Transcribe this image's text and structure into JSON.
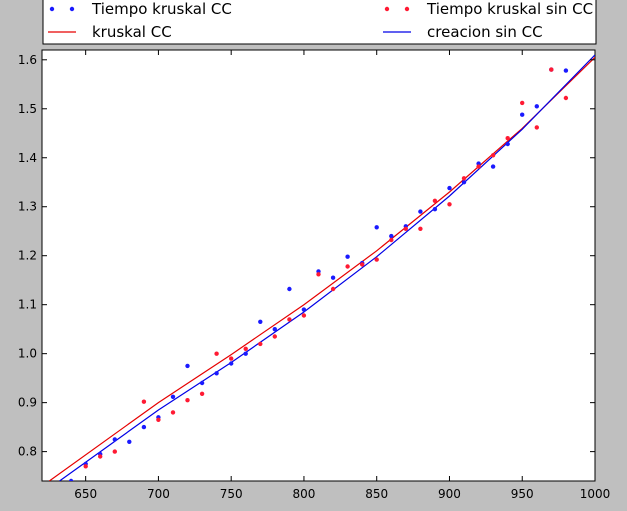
{
  "chart_data": {
    "type": "scatter",
    "title": "",
    "xlabel": "",
    "ylabel": "",
    "xlim": [
      620,
      1000
    ],
    "ylim": [
      0.74,
      1.62
    ],
    "x_ticks": [
      650,
      700,
      750,
      800,
      850,
      900,
      950,
      1000
    ],
    "y_ticks": [
      0.8,
      0.9,
      1.0,
      1.1,
      1.2,
      1.3,
      1.4,
      1.5,
      1.6
    ],
    "x_tick_labels": [
      "650",
      "700",
      "750",
      "800",
      "850",
      "900",
      "950",
      "1000"
    ],
    "y_tick_labels": [
      "0.8",
      "0.9",
      "1.0",
      "1.1",
      "1.2",
      "1.3",
      "1.4",
      "1.5",
      "1.6"
    ],
    "grid": false,
    "legend_position": "top",
    "series": [
      {
        "name": "Tiempo kruskal CC",
        "kind": "points",
        "color": "#1a1aff",
        "x": [
          640,
          650,
          660,
          670,
          680,
          690,
          700,
          710,
          720,
          730,
          740,
          750,
          760,
          770,
          780,
          790,
          800,
          810,
          820,
          830,
          840,
          850,
          860,
          870,
          880,
          890,
          900,
          910,
          920,
          930,
          940,
          950,
          960,
          970,
          980
        ],
        "y": [
          0.74,
          0.775,
          0.795,
          0.825,
          0.82,
          0.85,
          0.87,
          0.912,
          0.975,
          0.94,
          0.96,
          0.98,
          1.0,
          1.065,
          1.05,
          1.132,
          1.09,
          1.168,
          1.155,
          1.198,
          1.185,
          1.258,
          1.24,
          1.26,
          1.29,
          1.295,
          1.338,
          1.35,
          1.388,
          1.382,
          1.428,
          1.488,
          1.505,
          1.58,
          1.578
        ]
      },
      {
        "name": "Tiempo kruskal sin CC",
        "kind": "points",
        "color": "#ff1a33",
        "x": [
          650,
          660,
          670,
          690,
          700,
          710,
          720,
          730,
          740,
          750,
          760,
          770,
          780,
          790,
          800,
          810,
          820,
          830,
          840,
          850,
          860,
          870,
          880,
          890,
          900,
          910,
          920,
          930,
          940,
          950,
          960,
          970,
          980
        ],
        "y": [
          0.77,
          0.79,
          0.8,
          0.902,
          0.865,
          0.88,
          0.905,
          0.918,
          1.0,
          0.99,
          1.01,
          1.02,
          1.035,
          1.07,
          1.078,
          1.162,
          1.132,
          1.178,
          1.182,
          1.192,
          1.232,
          1.255,
          1.255,
          1.312,
          1.305,
          1.358,
          1.382,
          1.405,
          1.44,
          1.512,
          1.462,
          1.58,
          1.522
        ]
      },
      {
        "name": "kruskal CC",
        "kind": "line",
        "color": "#e60000",
        "x": [
          625,
          700,
          750,
          800,
          850,
          900,
          950,
          1000
        ],
        "y": [
          0.74,
          0.9,
          0.998,
          1.1,
          1.21,
          1.33,
          1.46,
          1.605
        ]
      },
      {
        "name": "creacion sin CC",
        "kind": "line",
        "color": "#0000e6",
        "x": [
          632,
          700,
          750,
          800,
          850,
          900,
          950,
          1000
        ],
        "y": [
          0.74,
          0.885,
          0.982,
          1.085,
          1.198,
          1.322,
          1.458,
          1.61
        ]
      }
    ]
  }
}
